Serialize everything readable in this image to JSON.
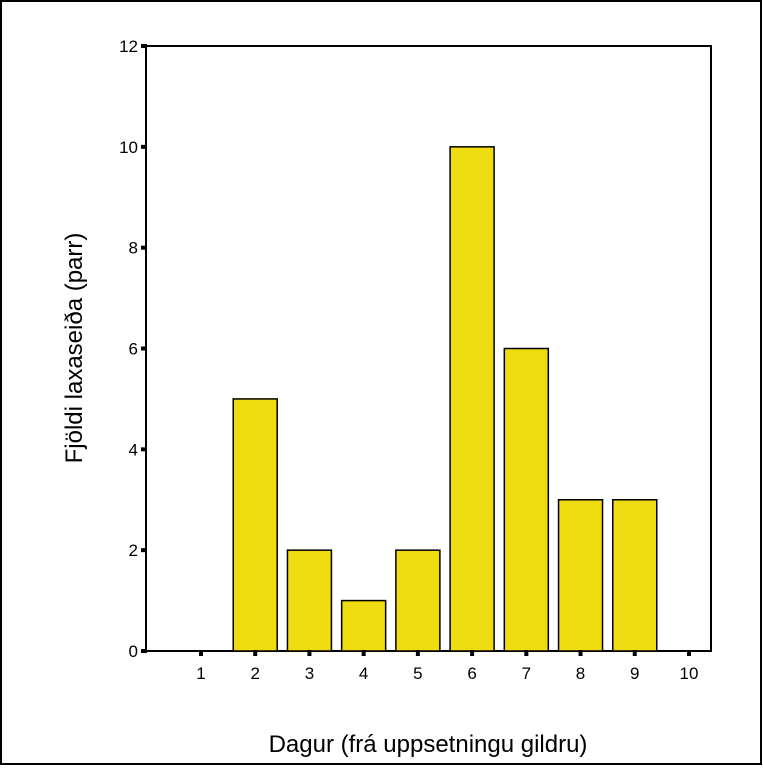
{
  "colors": {
    "bar_fill": "#EEDC10",
    "bar_stroke": "#000000",
    "axis": "#000000",
    "frame": "#000000",
    "background": "#FFFFFF"
  },
  "chart_data": {
    "type": "bar",
    "title": "",
    "xlabel": "Dagur (frá uppsetningu gildru)",
    "ylabel": "Fjöldi laxaseiða (parr)",
    "categories": [
      "1",
      "2",
      "3",
      "4",
      "5",
      "6",
      "7",
      "8",
      "9",
      "10"
    ],
    "values": [
      0,
      5,
      2,
      1,
      2,
      10,
      6,
      3,
      3,
      0
    ],
    "ylim": [
      0,
      12
    ],
    "yticks": [
      "0",
      "2",
      "4",
      "6",
      "8",
      "10",
      "12"
    ],
    "grid": false,
    "legend": "none"
  }
}
